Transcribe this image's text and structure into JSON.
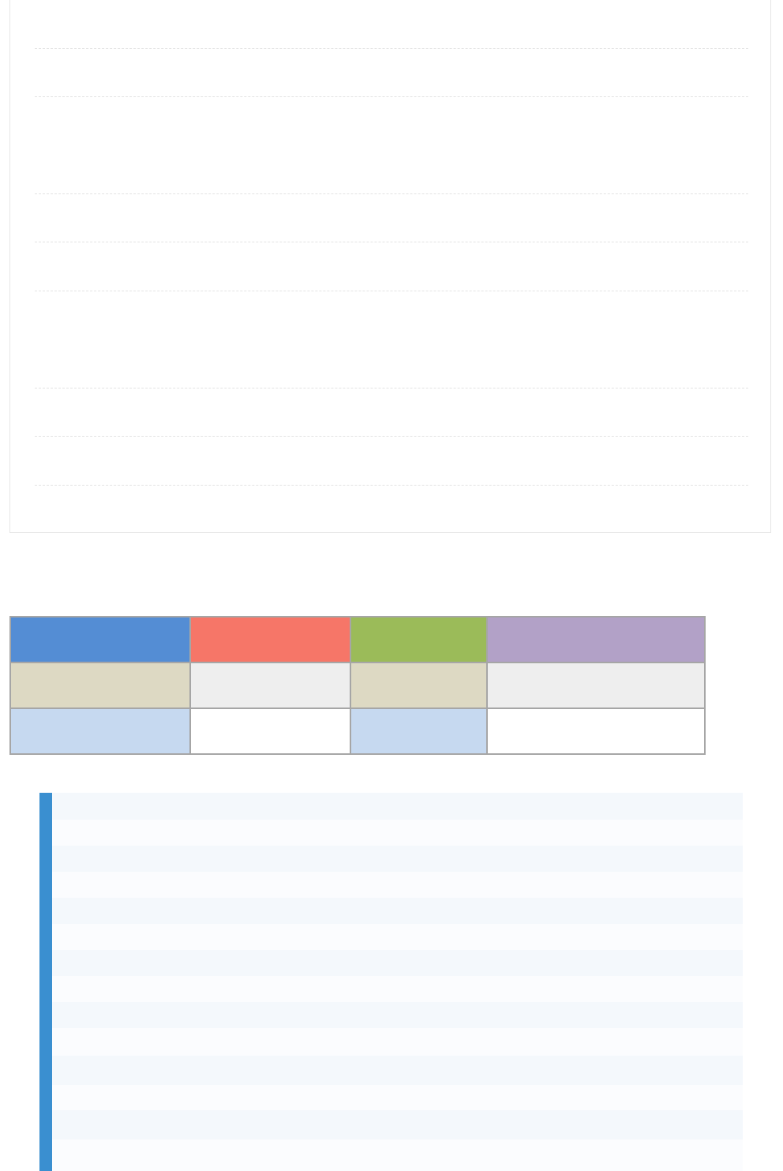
{
  "colors": {
    "table_header": [
      "#548dd4",
      "#f67668",
      "#9bbb59",
      "#b2a1c7"
    ],
    "table_row_1": [
      "#ddd9c3",
      "#eeeeee",
      "#ddd9c3",
      "#eeeeee"
    ],
    "table_row_2": [
      "#c6d9f0",
      "#ffffff",
      "#c6d9f0",
      "#ffffff"
    ],
    "list_accent": "#3a8fd0",
    "list_row_even": "#f4f8fc",
    "list_row_odd": "#fbfcfe"
  }
}
